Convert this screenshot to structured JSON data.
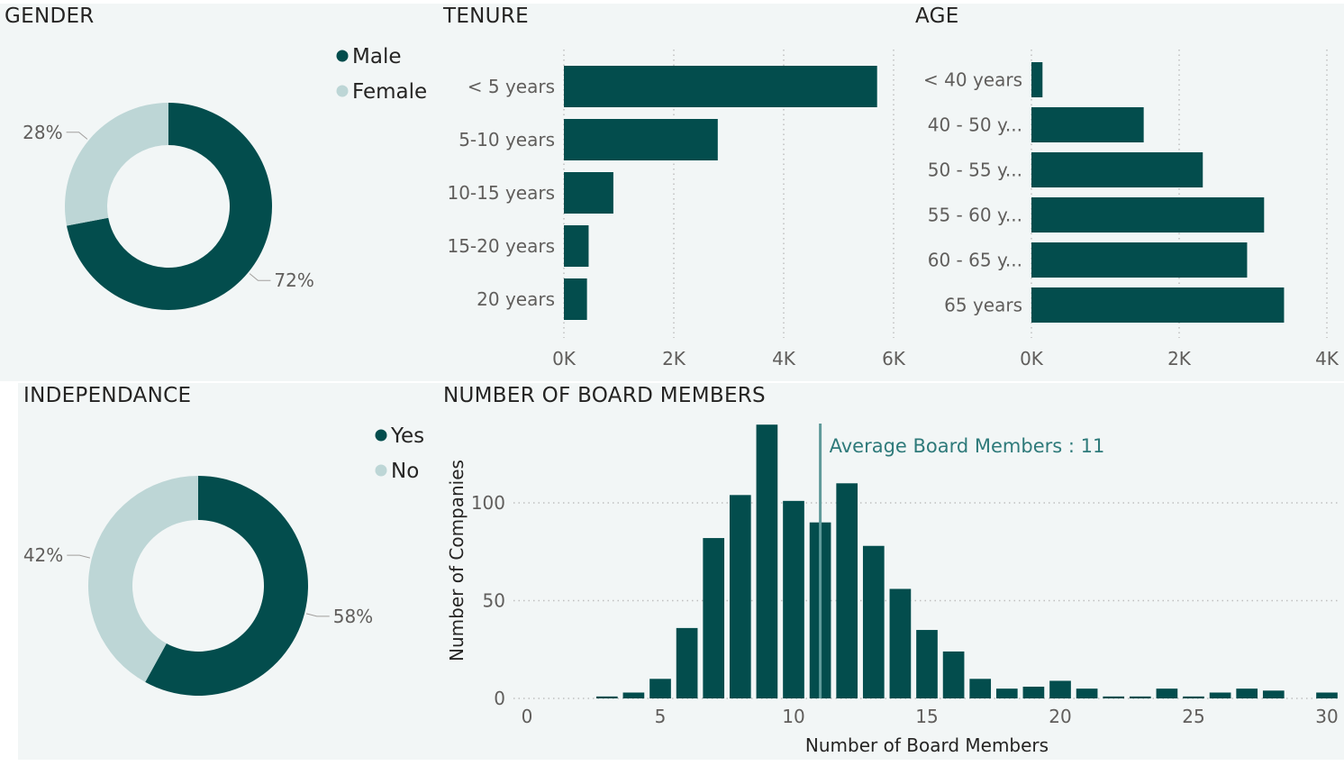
{
  "colors": {
    "primary": "#034d4d",
    "secondary": "#bdd6d6",
    "label": "#605e5c",
    "grid": "#c8c8c8"
  },
  "gender": {
    "title": "GENDER",
    "chart_data": {
      "type": "pie",
      "labels": [
        "Male",
        "Female"
      ],
      "values": [
        72,
        28
      ],
      "data_labels": [
        "72%",
        "28%"
      ],
      "legend_position": "top-right"
    }
  },
  "tenure": {
    "title": "TENURE",
    "chart_data": {
      "type": "bar",
      "orientation": "horizontal",
      "categories": [
        "< 5 years",
        "5-10 years",
        "10-15 years",
        "15-20 years",
        "20 years"
      ],
      "values": [
        5700,
        2800,
        900,
        450,
        420
      ],
      "xlim": [
        0,
        6000
      ],
      "ticks": [
        0,
        2000,
        4000,
        6000
      ],
      "tick_labels": [
        "0K",
        "2K",
        "4K",
        "6K"
      ],
      "grid": true
    }
  },
  "age": {
    "title": "AGE",
    "chart_data": {
      "type": "bar",
      "orientation": "horizontal",
      "categories": [
        "< 40 years",
        "40 - 50 y...",
        "50 - 55 y...",
        "55 - 60 y...",
        "60 - 65 y...",
        "65 years"
      ],
      "values": [
        150,
        1520,
        2320,
        3150,
        2920,
        3420
      ],
      "xlim": [
        0,
        4000
      ],
      "ticks": [
        0,
        2000,
        4000
      ],
      "tick_labels": [
        "0K",
        "2K",
        "4K"
      ],
      "grid": true
    }
  },
  "independance": {
    "title": "INDEPENDANCE",
    "chart_data": {
      "type": "pie",
      "labels": [
        "Yes",
        "No"
      ],
      "values": [
        58,
        42
      ],
      "data_labels": [
        "58%",
        "42%"
      ],
      "legend_position": "top-right"
    }
  },
  "board": {
    "title": "NUMBER OF BOARD MEMBERS",
    "chart_data": {
      "type": "bar",
      "x": [
        3,
        4,
        5,
        6,
        7,
        8,
        9,
        10,
        11,
        12,
        13,
        14,
        15,
        16,
        17,
        18,
        19,
        20,
        21,
        22,
        23,
        24,
        25,
        26,
        27,
        28,
        30
      ],
      "values": [
        1,
        3,
        10,
        36,
        82,
        104,
        140,
        101,
        90,
        110,
        78,
        56,
        35,
        24,
        10,
        5,
        6,
        9,
        5,
        1,
        1,
        5,
        1,
        3,
        5,
        4,
        3
      ],
      "xlabel": "Number of Board Members",
      "ylabel": "Number of Companies",
      "xlim": [
        0,
        30
      ],
      "ylim": [
        0,
        140
      ],
      "xticks": [
        0,
        5,
        10,
        15,
        20,
        25,
        30
      ],
      "yticks": [
        0,
        50,
        100
      ],
      "grid": true,
      "reference_line": {
        "x": 11,
        "label": "Average Board Members : 11"
      }
    }
  }
}
